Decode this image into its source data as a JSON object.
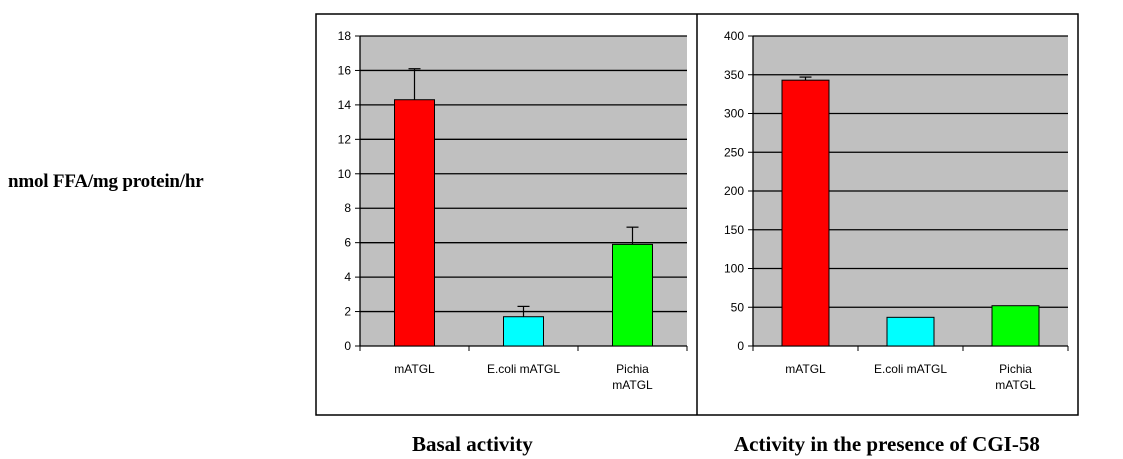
{
  "shared_ylabel": "nmol FFA/mg protein/hr",
  "colors": {
    "plot_bg": "#c0c0c0",
    "gridline": "#000000",
    "frame": "#000000"
  },
  "chart_data": [
    {
      "type": "bar",
      "title": "Basal activity",
      "xlabel": "",
      "ylabel": "nmol FFA/mg protein/hr",
      "categories": [
        [
          "mATGL"
        ],
        [
          "E.coli mATGL"
        ],
        [
          "Pichia",
          "mATGL"
        ]
      ],
      "values": [
        14.3,
        1.7,
        5.9
      ],
      "errors": [
        1.8,
        0.6,
        1.0
      ],
      "bar_colors": [
        "#ff0000",
        "#00ffff",
        "#00ff00"
      ],
      "ylim": [
        0,
        18
      ],
      "yticks": [
        0,
        2,
        4,
        6,
        8,
        10,
        12,
        14,
        16,
        18
      ],
      "grid": true
    },
    {
      "type": "bar",
      "title": "Activity in the presence of CGI-58",
      "xlabel": "",
      "ylabel": "nmol FFA/mg protein/hr",
      "categories": [
        [
          "mATGL"
        ],
        [
          "E.coli mATGL"
        ],
        [
          "Pichia",
          "mATGL"
        ]
      ],
      "values": [
        343,
        37,
        52
      ],
      "errors": [
        4,
        0,
        0
      ],
      "bar_colors": [
        "#ff0000",
        "#00ffff",
        "#00ff00"
      ],
      "ylim": [
        0,
        400
      ],
      "yticks": [
        0,
        50,
        100,
        150,
        200,
        250,
        300,
        350,
        400
      ],
      "grid": true
    }
  ]
}
